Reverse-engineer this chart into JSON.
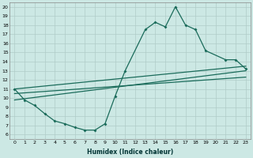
{
  "title": "",
  "xlabel": "Humidex (Indice chaleur)",
  "ylabel": "",
  "background_color": "#cce8e4",
  "grid_color": "#b0ccc8",
  "line_color": "#1a6b5a",
  "xlim": [
    -0.5,
    23.5
  ],
  "ylim": [
    5.5,
    20.5
  ],
  "xticks": [
    0,
    1,
    2,
    3,
    4,
    5,
    6,
    7,
    8,
    9,
    10,
    11,
    12,
    13,
    14,
    15,
    16,
    17,
    18,
    19,
    20,
    21,
    22,
    23
  ],
  "yticks": [
    6,
    7,
    8,
    9,
    10,
    11,
    12,
    13,
    14,
    15,
    16,
    17,
    18,
    19,
    20
  ],
  "curve1_x": [
    0,
    1,
    2,
    3,
    4,
    5,
    6,
    7,
    8,
    9,
    10,
    11,
    13,
    14,
    15,
    16,
    17,
    18,
    19,
    21,
    22,
    23
  ],
  "curve1_y": [
    11.0,
    9.8,
    9.2,
    8.3,
    7.5,
    7.2,
    6.8,
    6.5,
    6.5,
    7.2,
    10.2,
    13.0,
    17.5,
    18.3,
    17.8,
    20.0,
    18.0,
    17.5,
    15.2,
    14.2,
    14.2,
    13.2
  ],
  "line1_x": [
    0,
    23
  ],
  "line1_y": [
    11.0,
    13.5
  ],
  "line2_x": [
    0,
    23
  ],
  "line2_y": [
    9.8,
    13.0
  ],
  "line3_x": [
    0,
    23
  ],
  "line3_y": [
    10.5,
    12.3
  ],
  "xlabel_fontsize": 5.5,
  "tick_fontsize": 4.5
}
